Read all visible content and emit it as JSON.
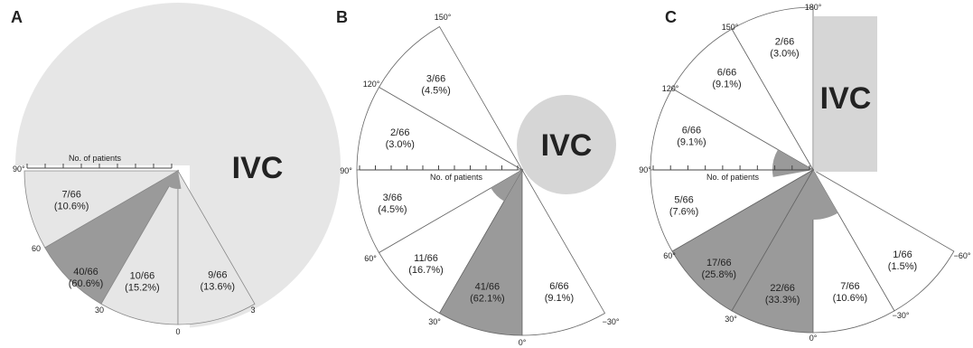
{
  "chart_data": [
    {
      "type": "pie",
      "panel": "A",
      "ivc_label": "IVC",
      "scale_label": "No. of patients",
      "angle_labels": [
        "90°",
        "60",
        "30",
        "0",
        "3"
      ],
      "sectors": [
        {
          "from_deg": 90,
          "to_deg": 60,
          "label": "7/66",
          "percent": "(10.6%)",
          "value": 7,
          "shade": "light"
        },
        {
          "from_deg": 60,
          "to_deg": 30,
          "label": "40/66",
          "percent": "(60.6%)",
          "value": 40,
          "shade": "dark"
        },
        {
          "from_deg": 30,
          "to_deg": 0,
          "label": "10/66",
          "percent": "(15.2%)",
          "value": 10,
          "shade": "light"
        },
        {
          "from_deg": 0,
          "to_deg": -30,
          "label": "9/66",
          "percent": "(13.6%)",
          "value": 9,
          "shade": "light"
        }
      ]
    },
    {
      "type": "pie",
      "panel": "B",
      "ivc_label": "IVC",
      "scale_label": "No. of patients",
      "angle_labels": [
        "150°",
        "120°",
        "90°",
        "60°",
        "30°",
        "0°",
        "−30°"
      ],
      "sectors": [
        {
          "from_deg": 150,
          "to_deg": 120,
          "label": "3/66",
          "percent": "(4.5%)",
          "value": 3,
          "shade": "white"
        },
        {
          "from_deg": 120,
          "to_deg": 90,
          "label": "2/66",
          "percent": "(3.0%)",
          "value": 2,
          "shade": "white"
        },
        {
          "from_deg": 90,
          "to_deg": 60,
          "label": "3/66",
          "percent": "(4.5%)",
          "value": 3,
          "shade": "white"
        },
        {
          "from_deg": 60,
          "to_deg": 30,
          "label": "11/66",
          "percent": "(16.7%)",
          "value": 11,
          "shade": "white"
        },
        {
          "from_deg": 30,
          "to_deg": 0,
          "label": "41/66",
          "percent": "(62.1%)",
          "value": 41,
          "shade": "dark"
        },
        {
          "from_deg": 0,
          "to_deg": -30,
          "label": "6/66",
          "percent": "(9.1%)",
          "value": 6,
          "shade": "white"
        }
      ]
    },
    {
      "type": "pie",
      "panel": "C",
      "ivc_label": "IVC",
      "scale_label": "No. of patients",
      "angle_labels": [
        "180°",
        "150°",
        "120°",
        "90°",
        "60°",
        "30°",
        "0°",
        "−30°",
        "−60°"
      ],
      "sectors": [
        {
          "from_deg": 180,
          "to_deg": 150,
          "label": "2/66",
          "percent": "(3.0%)",
          "value": 2,
          "shade": "white"
        },
        {
          "from_deg": 150,
          "to_deg": 120,
          "label": "6/66",
          "percent": "(9.1%)",
          "value": 6,
          "shade": "white"
        },
        {
          "from_deg": 120,
          "to_deg": 90,
          "label": "6/66",
          "percent": "(9.1%)",
          "value": 6,
          "shade": "white"
        },
        {
          "from_deg": 90,
          "to_deg": 60,
          "label": "5/66",
          "percent": "(7.6%)",
          "value": 5,
          "shade": "white"
        },
        {
          "from_deg": 60,
          "to_deg": 30,
          "label": "17/66",
          "percent": "(25.8%)",
          "value": 17,
          "shade": "dark"
        },
        {
          "from_deg": 30,
          "to_deg": 0,
          "label": "22/66",
          "percent": "(33.3%)",
          "value": 22,
          "shade": "dark"
        },
        {
          "from_deg": 0,
          "to_deg": -30,
          "label": "7/66",
          "percent": "(10.6%)",
          "value": 7,
          "shade": "white"
        },
        {
          "from_deg": -30,
          "to_deg": -60,
          "label": "1/66",
          "percent": "(1.5%)",
          "value": 1,
          "shade": "white"
        }
      ]
    }
  ],
  "colors": {
    "dark": "#9a9a9a",
    "light": "#e6e6e6",
    "white": "#ffffff",
    "ivc_fill": "#d6d6d6",
    "stroke": "#555555",
    "inner_wedge": "#9a9a9a"
  }
}
